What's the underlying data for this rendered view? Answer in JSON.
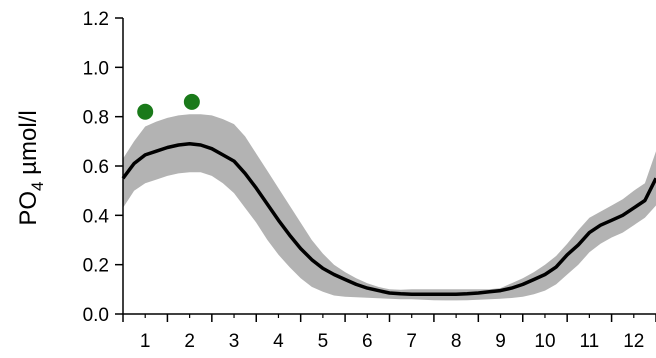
{
  "chart_data": {
    "type": "line",
    "title": "",
    "xlabel": "",
    "ylabel": {
      "base": "PO",
      "subscript": "4",
      "unit": " µmol/l"
    },
    "xlim": [
      0.5,
      12.5
    ],
    "ylim": [
      0,
      1.2
    ],
    "xticks": [
      1,
      2,
      3,
      4,
      5,
      6,
      7,
      8,
      9,
      10,
      11,
      12
    ],
    "yticks": [
      "0.0",
      "0.2",
      "0.4",
      "0.6",
      "0.8",
      "1.0",
      "1.2"
    ],
    "grid": false,
    "series": [
      {
        "kind": "mean-line",
        "color": "#000000",
        "x": [
          0.5,
          0.75,
          1.0,
          1.25,
          1.5,
          1.75,
          2.0,
          2.25,
          2.5,
          2.75,
          3.0,
          3.25,
          3.5,
          3.75,
          4.0,
          4.25,
          4.5,
          4.75,
          5.0,
          5.25,
          5.5,
          5.75,
          6.0,
          6.25,
          6.5,
          6.75,
          7.0,
          7.25,
          7.5,
          7.75,
          8.0,
          8.25,
          8.5,
          8.75,
          9.0,
          9.25,
          9.5,
          9.75,
          10.0,
          10.25,
          10.5,
          10.75,
          11.0,
          11.25,
          11.5,
          11.75,
          12.0,
          12.25,
          12.5
        ],
        "y": [
          0.55,
          0.61,
          0.645,
          0.66,
          0.675,
          0.685,
          0.69,
          0.685,
          0.67,
          0.645,
          0.62,
          0.57,
          0.51,
          0.445,
          0.38,
          0.32,
          0.265,
          0.22,
          0.185,
          0.16,
          0.14,
          0.12,
          0.105,
          0.095,
          0.085,
          0.082,
          0.08,
          0.08,
          0.08,
          0.08,
          0.08,
          0.082,
          0.085,
          0.09,
          0.095,
          0.105,
          0.12,
          0.14,
          0.16,
          0.19,
          0.24,
          0.28,
          0.33,
          0.36,
          0.38,
          0.4,
          0.43,
          0.46,
          0.55
        ]
      },
      {
        "kind": "band",
        "color": "#b3b3b3",
        "x": [
          0.5,
          0.75,
          1.0,
          1.25,
          1.5,
          1.75,
          2.0,
          2.25,
          2.5,
          2.75,
          3.0,
          3.25,
          3.5,
          3.75,
          4.0,
          4.25,
          4.5,
          4.75,
          5.0,
          5.25,
          5.5,
          5.75,
          6.0,
          6.25,
          6.5,
          6.75,
          7.0,
          7.25,
          7.5,
          7.75,
          8.0,
          8.25,
          8.5,
          8.75,
          9.0,
          9.25,
          9.5,
          9.75,
          10.0,
          10.25,
          10.5,
          10.75,
          11.0,
          11.25,
          11.5,
          11.75,
          12.0,
          12.25,
          12.5
        ],
        "upper": [
          0.63,
          0.7,
          0.76,
          0.78,
          0.795,
          0.805,
          0.81,
          0.81,
          0.805,
          0.79,
          0.77,
          0.72,
          0.65,
          0.58,
          0.51,
          0.44,
          0.37,
          0.3,
          0.245,
          0.2,
          0.17,
          0.145,
          0.125,
          0.11,
          0.1,
          0.098,
          0.1,
          0.1,
          0.1,
          0.1,
          0.1,
          0.1,
          0.1,
          0.1,
          0.105,
          0.125,
          0.145,
          0.17,
          0.2,
          0.235,
          0.285,
          0.34,
          0.39,
          0.415,
          0.44,
          0.465,
          0.5,
          0.53,
          0.66
        ]
      },
      {
        "kind": "band-lower",
        "x": [
          0.5,
          0.75,
          1.0,
          1.25,
          1.5,
          1.75,
          2.0,
          2.25,
          2.5,
          2.75,
          3.0,
          3.25,
          3.5,
          3.75,
          4.0,
          4.25,
          4.5,
          4.75,
          5.0,
          5.25,
          5.5,
          5.75,
          6.0,
          6.25,
          6.5,
          6.75,
          7.0,
          7.25,
          7.5,
          7.75,
          8.0,
          8.25,
          8.5,
          8.75,
          9.0,
          9.25,
          9.5,
          9.75,
          10.0,
          10.25,
          10.5,
          10.75,
          11.0,
          11.25,
          11.5,
          11.75,
          12.0,
          12.25,
          12.5
        ],
        "lower": [
          0.43,
          0.5,
          0.53,
          0.545,
          0.56,
          0.57,
          0.575,
          0.575,
          0.56,
          0.53,
          0.49,
          0.43,
          0.37,
          0.3,
          0.24,
          0.19,
          0.145,
          0.11,
          0.09,
          0.075,
          0.07,
          0.068,
          0.066,
          0.064,
          0.062,
          0.06,
          0.06,
          0.058,
          0.056,
          0.055,
          0.055,
          0.056,
          0.058,
          0.06,
          0.062,
          0.065,
          0.07,
          0.08,
          0.095,
          0.12,
          0.16,
          0.2,
          0.25,
          0.285,
          0.31,
          0.33,
          0.36,
          0.39,
          0.44
        ]
      },
      {
        "kind": "points",
        "color": "#1a7a1a",
        "x": [
          1.0,
          2.05
        ],
        "y": [
          0.82,
          0.86
        ]
      }
    ]
  }
}
